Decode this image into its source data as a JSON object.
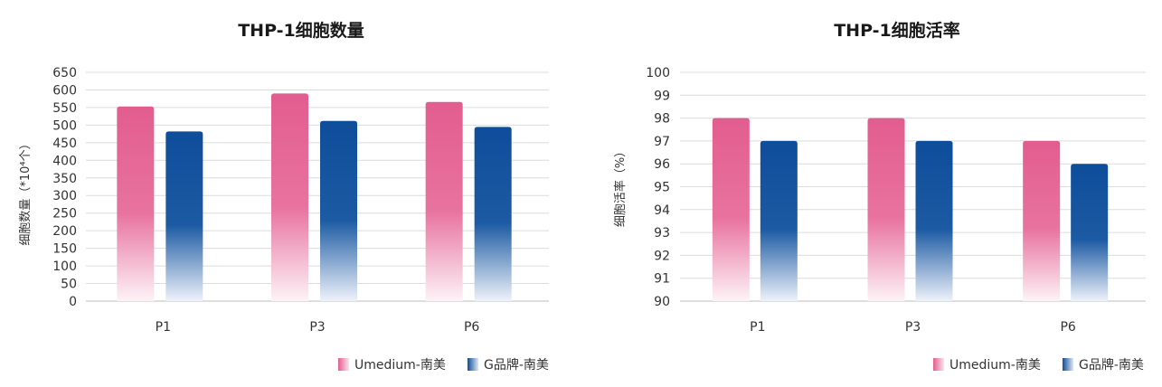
{
  "colors": {
    "umedium": "#e25d8f",
    "gbrand": "#0e4d9a"
  },
  "chart_data": [
    {
      "type": "bar",
      "title": "THP-1细胞数量",
      "ylabel": "细胞数量（*10⁴个）",
      "xlabel": "",
      "ylim": [
        0,
        650
      ],
      "yticks": [
        0,
        50,
        100,
        150,
        200,
        250,
        300,
        350,
        400,
        450,
        500,
        550,
        600,
        650
      ],
      "categories": [
        "P1",
        "P3",
        "P6"
      ],
      "series": [
        {
          "name": "Umedium-南美",
          "values": [
            553,
            590,
            566
          ]
        },
        {
          "name": "G品牌-南美",
          "values": [
            482,
            512,
            495
          ]
        }
      ],
      "legend": "bottom-right",
      "grid": true
    },
    {
      "type": "bar",
      "title": "THP-1细胞活率",
      "ylabel": "细胞活率（%）",
      "xlabel": "",
      "ylim": [
        90,
        100
      ],
      "yticks": [
        90,
        91,
        92,
        93,
        94,
        95,
        96,
        97,
        98,
        99,
        100
      ],
      "categories": [
        "P1",
        "P3",
        "P6"
      ],
      "series": [
        {
          "name": "Umedium-南美",
          "values": [
            98,
            98,
            97
          ]
        },
        {
          "name": "G品牌-南美",
          "values": [
            97,
            97,
            96
          ]
        }
      ],
      "legend": "bottom-right",
      "grid": true
    }
  ]
}
